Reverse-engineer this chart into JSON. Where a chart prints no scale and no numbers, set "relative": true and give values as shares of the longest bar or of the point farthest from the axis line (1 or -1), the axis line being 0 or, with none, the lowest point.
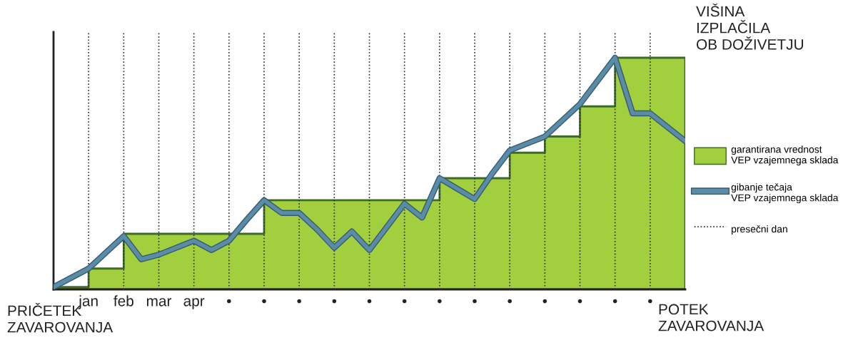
{
  "chart_data": {
    "type": "line",
    "relative": true,
    "categories": [
      null,
      null,
      "jan",
      null,
      "feb",
      null,
      "mar",
      null,
      "apr",
      null,
      "•",
      null,
      "•",
      null,
      "•",
      null,
      "•",
      null,
      "•",
      null,
      "•",
      null,
      "•",
      null,
      "•",
      null,
      "•",
      null,
      "•",
      null,
      "•",
      null,
      "•",
      null,
      "•",
      null,
      null
    ],
    "series": [
      {
        "name": "garantirana vrednost\nVEP vzajemnega sklada",
        "type": "area",
        "color": "#a2cf3d",
        "values": [
          0.01,
          0.01,
          0.09,
          0.09,
          0.24,
          0.24,
          0.24,
          0.24,
          0.24,
          0.24,
          0.24,
          0.24,
          0.385,
          0.385,
          0.385,
          0.385,
          0.385,
          0.385,
          0.385,
          0.385,
          0.385,
          0.385,
          0.48,
          0.48,
          0.48,
          0.48,
          0.59,
          0.59,
          0.66,
          0.66,
          0.79,
          0.79,
          1,
          1,
          1,
          1,
          1
        ]
      },
      {
        "name": "gibanje tečaja\nVEP vzajemnega sklada",
        "color": "#5a8ca8",
        "values": [
          0.01,
          0.05,
          0.09,
          0.16,
          0.23,
          0.13,
          0.15,
          0.18,
          0.21,
          0.17,
          0.21,
          0.3,
          0.385,
          0.33,
          0.33,
          0.26,
          0.18,
          0.25,
          0.17,
          0.27,
          0.37,
          0.31,
          0.48,
          0.435,
          0.39,
          0.5,
          0.6,
          0.63,
          0.66,
          0.73,
          0.8,
          0.9,
          1,
          0.76,
          0.76,
          0.7,
          0.64
        ]
      }
    ],
    "annotations": [
      "VIŠINA\nIZPLAČILA\nOB DOŽIVETJU",
      "PRIČETEK\nZAVAROVANJA",
      "POTEK\nZAVAROVANJA",
      "presečni dan"
    ],
    "grid": "x",
    "legend": "right"
  }
}
